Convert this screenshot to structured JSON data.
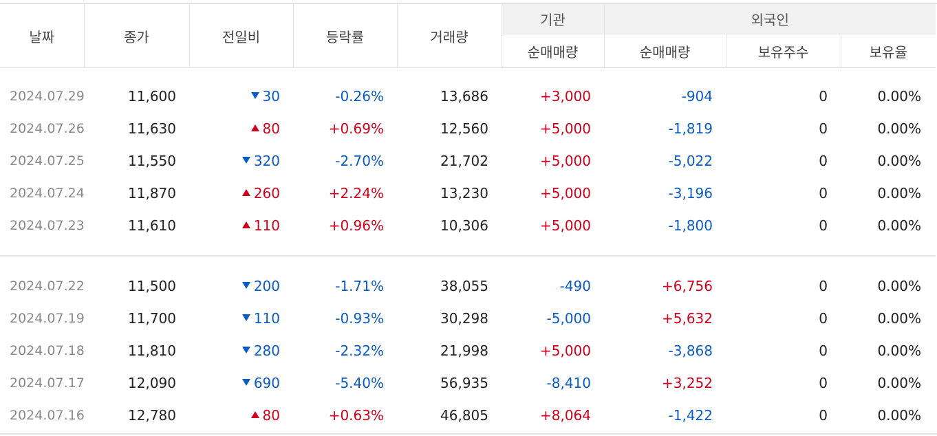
{
  "header": {
    "date": "날짜",
    "close": "종가",
    "change": "전일비",
    "rate": "등락률",
    "volume": "거래량",
    "institution": "기관",
    "foreign": "외국인",
    "inst_net": "순매매량",
    "foreign_net": "순매매량",
    "holdings": "보유주수",
    "holding_ratio": "보유율"
  },
  "colors": {
    "up": "#d0021b",
    "down": "#0b5cc4"
  },
  "groups": [
    [
      {
        "date": "2024.07.29",
        "close": "11,600",
        "dir": "down",
        "change": "30",
        "rate": "-0.26%",
        "volume": "13,686",
        "inst": "+3,000",
        "foreign": "-904",
        "holdings": "0",
        "ratio": "0.00%"
      },
      {
        "date": "2024.07.26",
        "close": "11,630",
        "dir": "up",
        "change": "80",
        "rate": "+0.69%",
        "volume": "12,560",
        "inst": "+5,000",
        "foreign": "-1,819",
        "holdings": "0",
        "ratio": "0.00%"
      },
      {
        "date": "2024.07.25",
        "close": "11,550",
        "dir": "down",
        "change": "320",
        "rate": "-2.70%",
        "volume": "21,702",
        "inst": "+5,000",
        "foreign": "-5,022",
        "holdings": "0",
        "ratio": "0.00%"
      },
      {
        "date": "2024.07.24",
        "close": "11,870",
        "dir": "up",
        "change": "260",
        "rate": "+2.24%",
        "volume": "13,230",
        "inst": "+5,000",
        "foreign": "-3,196",
        "holdings": "0",
        "ratio": "0.00%"
      },
      {
        "date": "2024.07.23",
        "close": "11,610",
        "dir": "up",
        "change": "110",
        "rate": "+0.96%",
        "volume": "10,306",
        "inst": "+5,000",
        "foreign": "-1,800",
        "holdings": "0",
        "ratio": "0.00%"
      }
    ],
    [
      {
        "date": "2024.07.22",
        "close": "11,500",
        "dir": "down",
        "change": "200",
        "rate": "-1.71%",
        "volume": "38,055",
        "inst": "-490",
        "foreign": "+6,756",
        "holdings": "0",
        "ratio": "0.00%"
      },
      {
        "date": "2024.07.19",
        "close": "11,700",
        "dir": "down",
        "change": "110",
        "rate": "-0.93%",
        "volume": "30,298",
        "inst": "-5,000",
        "foreign": "+5,632",
        "holdings": "0",
        "ratio": "0.00%"
      },
      {
        "date": "2024.07.18",
        "close": "11,810",
        "dir": "down",
        "change": "280",
        "rate": "-2.32%",
        "volume": "21,998",
        "inst": "+5,000",
        "foreign": "-3,868",
        "holdings": "0",
        "ratio": "0.00%"
      },
      {
        "date": "2024.07.17",
        "close": "12,090",
        "dir": "down",
        "change": "690",
        "rate": "-5.40%",
        "volume": "56,935",
        "inst": "-8,410",
        "foreign": "+3,252",
        "holdings": "0",
        "ratio": "0.00%"
      },
      {
        "date": "2024.07.16",
        "close": "12,780",
        "dir": "up",
        "change": "80",
        "rate": "+0.63%",
        "volume": "46,805",
        "inst": "+8,064",
        "foreign": "-1,422",
        "holdings": "0",
        "ratio": "0.00%"
      }
    ]
  ]
}
